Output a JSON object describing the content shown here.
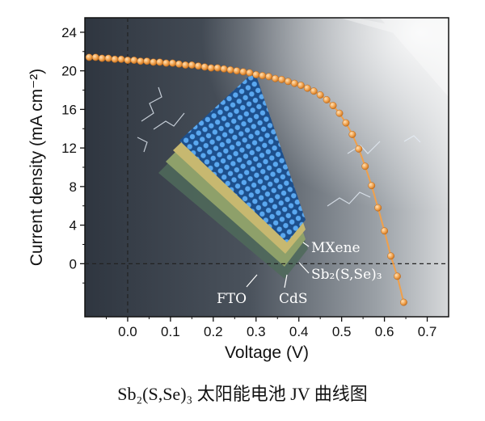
{
  "chart_data": {
    "type": "line",
    "title": "",
    "xlabel": "Voltage (V)",
    "ylabel": "Current density (mA cm⁻²)",
    "xlim": [
      -0.1,
      0.75
    ],
    "ylim": [
      -5.5,
      25.5
    ],
    "x_ticks": [
      "0.0",
      "0.1",
      "0.2",
      "0.3",
      "0.4",
      "0.5",
      "0.6",
      "0.7"
    ],
    "y_ticks": [
      "0",
      "4",
      "8",
      "12",
      "16",
      "20",
      "24"
    ],
    "series": [
      {
        "name": "JV curve",
        "color": "#f0a04b",
        "x": [
          -0.09,
          -0.075,
          -0.06,
          -0.045,
          -0.03,
          -0.015,
          0.0,
          0.015,
          0.03,
          0.045,
          0.06,
          0.075,
          0.09,
          0.105,
          0.12,
          0.135,
          0.15,
          0.165,
          0.18,
          0.195,
          0.21,
          0.225,
          0.24,
          0.255,
          0.27,
          0.285,
          0.3,
          0.315,
          0.33,
          0.345,
          0.36,
          0.375,
          0.39,
          0.405,
          0.42,
          0.435,
          0.45,
          0.465,
          0.48,
          0.495,
          0.51,
          0.525,
          0.54,
          0.555,
          0.57,
          0.585,
          0.6,
          0.615,
          0.63,
          0.645
        ],
        "y": [
          21.4,
          21.4,
          21.3,
          21.3,
          21.2,
          21.2,
          21.1,
          21.1,
          21.0,
          21.0,
          20.9,
          20.9,
          20.8,
          20.8,
          20.7,
          20.6,
          20.6,
          20.5,
          20.4,
          20.3,
          20.3,
          20.2,
          20.1,
          20.0,
          19.9,
          19.8,
          19.6,
          19.5,
          19.4,
          19.2,
          19.1,
          18.9,
          18.7,
          18.5,
          18.2,
          17.9,
          17.5,
          17.0,
          16.4,
          15.6,
          14.6,
          13.4,
          11.9,
          10.1,
          8.1,
          5.8,
          3.4,
          0.8,
          -1.3,
          -4.0
        ]
      }
    ],
    "grid": false,
    "reference_lines": {
      "x": 0,
      "y": 0
    }
  },
  "illustration": {
    "labels": [
      "MXene",
      "Sb₂(S,Se)₃",
      "FTO",
      "CdS"
    ]
  },
  "caption": "Sb₂(S,Se)₃ 太阳能电池 JV 曲线图"
}
